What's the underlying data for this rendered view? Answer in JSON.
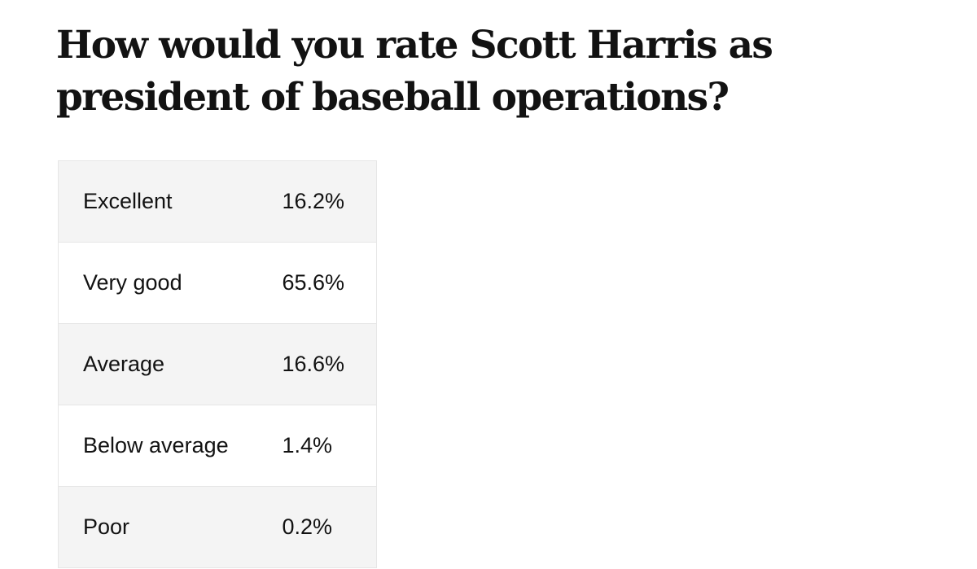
{
  "title": "How would you rate Scott Harris as president of baseball operations?",
  "chart_data": {
    "type": "table",
    "title": "How would you rate Scott Harris as president of baseball operations?",
    "categories": [
      "Excellent",
      "Very good",
      "Average",
      "Below average",
      "Poor"
    ],
    "values": [
      16.2,
      65.6,
      16.6,
      1.4,
      0.2
    ],
    "value_labels": [
      "16.2%",
      "65.6%",
      "16.6%",
      "1.4%",
      "0.2%"
    ],
    "unit": "%"
  },
  "colors": {
    "text": "#121212",
    "row_shade": "#f4f4f4",
    "row_plain": "#ffffff",
    "border": "#e6e6e6"
  }
}
